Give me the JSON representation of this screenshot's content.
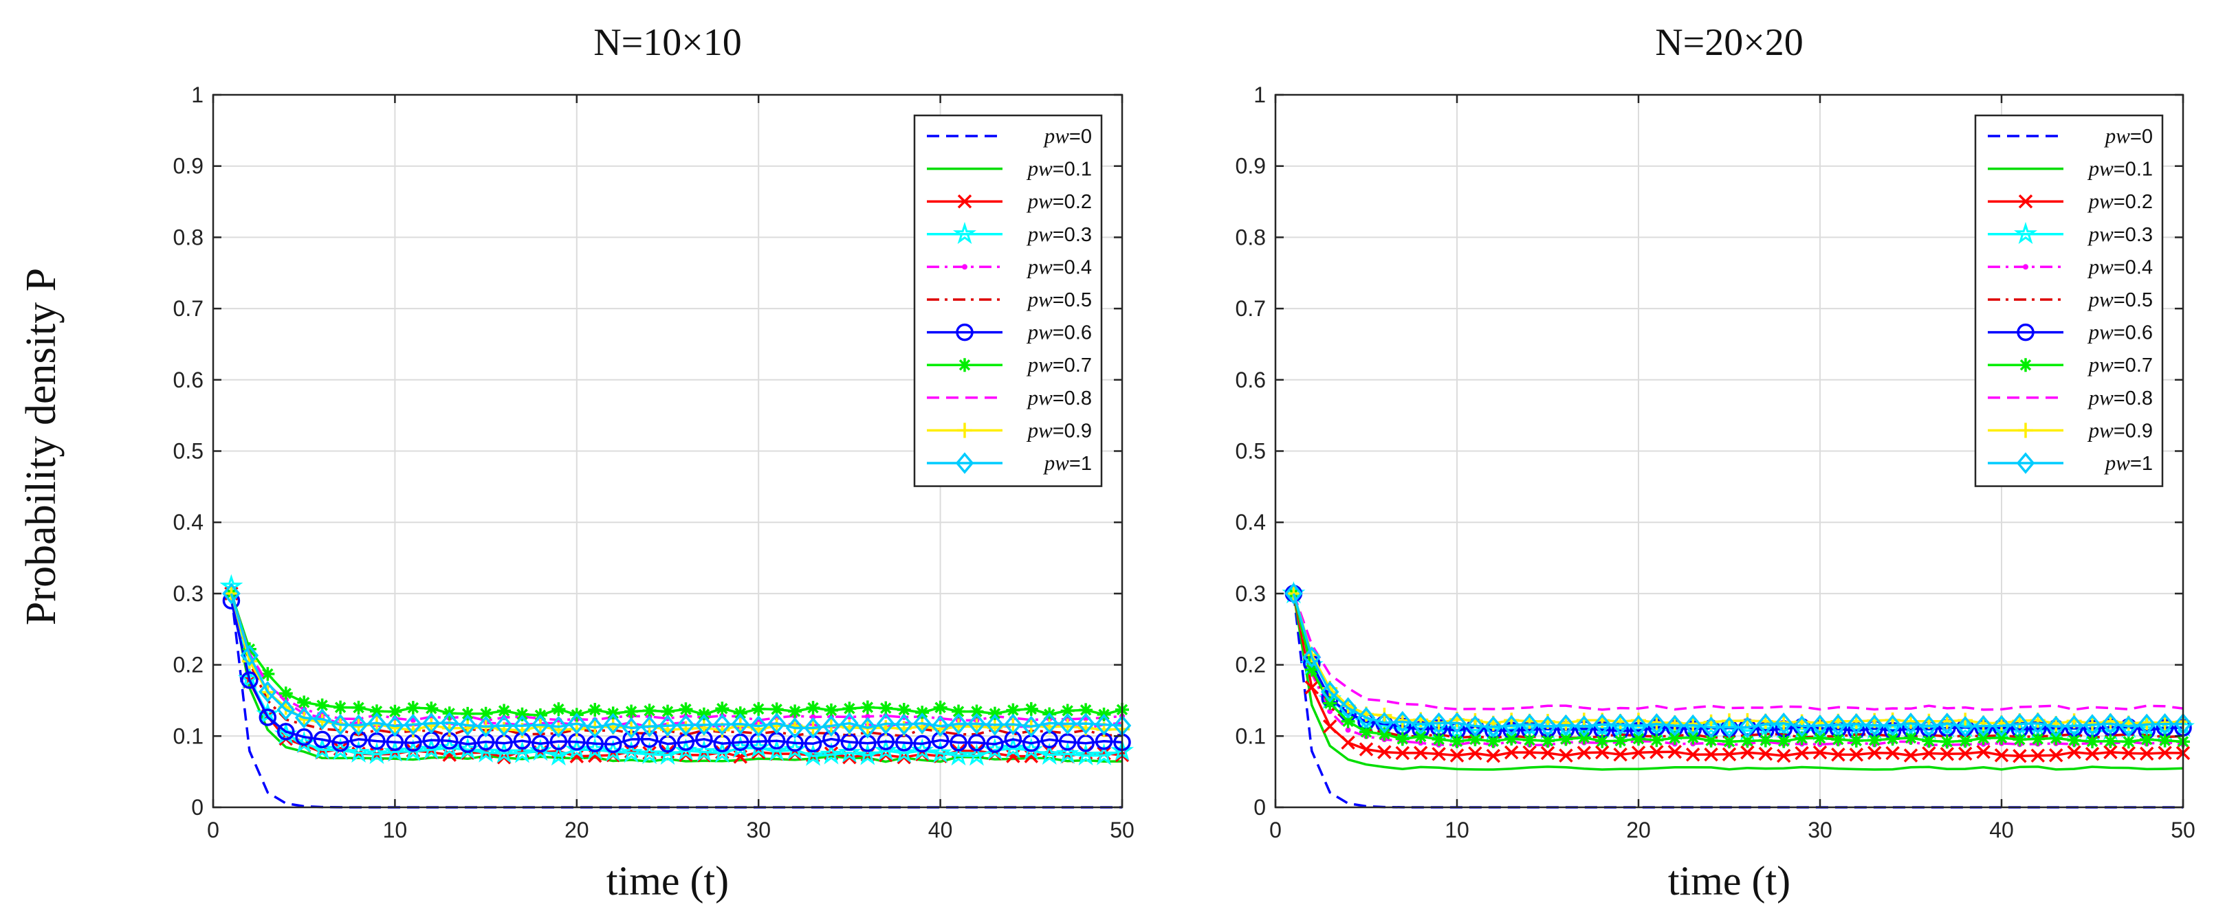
{
  "figure": {
    "ylabel": "Probability density P"
  },
  "chart_data": [
    {
      "type": "line",
      "title": "N=10×10",
      "xlabel": "time  (t)",
      "ylabel": "Probability density P",
      "xlim": [
        0,
        50
      ],
      "ylim": [
        0,
        1
      ],
      "xticks": [
        "0",
        "10",
        "20",
        "30",
        "40",
        "50"
      ],
      "yticks": [
        "0",
        "0.1",
        "0.2",
        "0.3",
        "0.4",
        "0.5",
        "0.6",
        "0.7",
        "0.8",
        "0.9",
        "1"
      ],
      "grid": true,
      "legend_position": "top-right",
      "legend_prefix": "pw",
      "series": [
        {
          "name": "=0",
          "color": "#0000ff",
          "style": "dashed",
          "marker": "none",
          "start": 0.3,
          "decay": 0.75,
          "level": 0.0,
          "noise": 0.0,
          "seed": 1
        },
        {
          "name": "=0.1",
          "color": "#00dd00",
          "style": "solid",
          "marker": "none",
          "start": 0.3,
          "decay": 1.2,
          "level": 0.068,
          "noise": 0.004,
          "seed": 2
        },
        {
          "name": "=0.2",
          "color": "#ff0000",
          "style": "solid",
          "marker": "x",
          "start": 0.3,
          "decay": 1.3,
          "level": 0.075,
          "noise": 0.005,
          "seed": 3
        },
        {
          "name": "=0.3",
          "color": "#00ffff",
          "style": "solid",
          "marker": "star",
          "start": 0.31,
          "decay": 1.3,
          "level": 0.078,
          "noise": 0.006,
          "seed": 4
        },
        {
          "name": "=0.4",
          "color": "#ff00ff",
          "style": "dashdot",
          "marker": "dot",
          "start": 0.3,
          "decay": 1.5,
          "level": 0.125,
          "noise": 0.004,
          "seed": 5
        },
        {
          "name": "=0.5",
          "color": "#dd0000",
          "style": "dashdot",
          "marker": "none",
          "start": 0.3,
          "decay": 1.4,
          "level": 0.105,
          "noise": 0.005,
          "seed": 6
        },
        {
          "name": "=0.6",
          "color": "#0000ff",
          "style": "solid",
          "marker": "circle",
          "start": 0.29,
          "decay": 1.2,
          "level": 0.092,
          "noise": 0.004,
          "seed": 7
        },
        {
          "name": "=0.7",
          "color": "#00ee00",
          "style": "solid",
          "marker": "asterisk",
          "start": 0.3,
          "decay": 1.6,
          "level": 0.135,
          "noise": 0.006,
          "seed": 8
        },
        {
          "name": "=0.8",
          "color": "#ff00ff",
          "style": "dashed",
          "marker": "none",
          "start": 0.3,
          "decay": 1.7,
          "level": 0.115,
          "noise": 0.004,
          "seed": 9
        },
        {
          "name": "=0.9",
          "color": "#ffee00",
          "style": "solid",
          "marker": "plus",
          "start": 0.3,
          "decay": 1.5,
          "level": 0.112,
          "noise": 0.004,
          "seed": 10
        },
        {
          "name": "=1",
          "color": "#00ccff",
          "style": "solid",
          "marker": "diamond",
          "start": 0.3,
          "decay": 1.5,
          "level": 0.115,
          "noise": 0.004,
          "seed": 11
        }
      ]
    },
    {
      "type": "line",
      "title": "N=20×20",
      "xlabel": "time  (t)",
      "ylabel": "",
      "xlim": [
        0,
        50
      ],
      "ylim": [
        0,
        1
      ],
      "xticks": [
        "0",
        "10",
        "20",
        "30",
        "40",
        "50"
      ],
      "yticks": [
        "0",
        "0.1",
        "0.2",
        "0.3",
        "0.4",
        "0.5",
        "0.6",
        "0.7",
        "0.8",
        "0.9",
        "1"
      ],
      "grid": true,
      "legend_position": "top-right",
      "legend_prefix": "pw",
      "series": [
        {
          "name": "=0",
          "color": "#0000ff",
          "style": "dashed",
          "marker": "none",
          "start": 0.3,
          "decay": 0.75,
          "level": 0.0,
          "noise": 0.0,
          "seed": 21
        },
        {
          "name": "=0.1",
          "color": "#00dd00",
          "style": "solid",
          "marker": "none",
          "start": 0.3,
          "decay": 1.0,
          "level": 0.055,
          "noise": 0.002,
          "seed": 22
        },
        {
          "name": "=0.2",
          "color": "#ff0000",
          "style": "solid",
          "marker": "x",
          "start": 0.3,
          "decay": 1.1,
          "level": 0.075,
          "noise": 0.003,
          "seed": 23
        },
        {
          "name": "=0.3",
          "color": "#00ffff",
          "style": "solid",
          "marker": "star",
          "start": 0.3,
          "decay": 1.3,
          "level": 0.11,
          "noise": 0.003,
          "seed": 24
        },
        {
          "name": "=0.4",
          "color": "#ff00ff",
          "style": "dashdot",
          "marker": "dot",
          "start": 0.3,
          "decay": 1.3,
          "level": 0.09,
          "noise": 0.003,
          "seed": 25
        },
        {
          "name": "=0.5",
          "color": "#dd0000",
          "style": "dashdot",
          "marker": "none",
          "start": 0.3,
          "decay": 1.3,
          "level": 0.1,
          "noise": 0.003,
          "seed": 26
        },
        {
          "name": "=0.6",
          "color": "#0000ff",
          "style": "solid",
          "marker": "circle",
          "start": 0.3,
          "decay": 1.4,
          "level": 0.11,
          "noise": 0.003,
          "seed": 27
        },
        {
          "name": "=0.7",
          "color": "#00ee00",
          "style": "solid",
          "marker": "asterisk",
          "start": 0.3,
          "decay": 1.4,
          "level": 0.095,
          "noise": 0.003,
          "seed": 28
        },
        {
          "name": "=0.8",
          "color": "#ff00ff",
          "style": "dashed",
          "marker": "none",
          "start": 0.3,
          "decay": 1.6,
          "level": 0.14,
          "noise": 0.003,
          "seed": 29
        },
        {
          "name": "=0.9",
          "color": "#ffee00",
          "style": "solid",
          "marker": "plus",
          "start": 0.3,
          "decay": 1.5,
          "level": 0.12,
          "noise": 0.003,
          "seed": 30
        },
        {
          "name": "=1",
          "color": "#00ccff",
          "style": "solid",
          "marker": "diamond",
          "start": 0.3,
          "decay": 1.5,
          "level": 0.115,
          "noise": 0.003,
          "seed": 31
        }
      ]
    }
  ]
}
